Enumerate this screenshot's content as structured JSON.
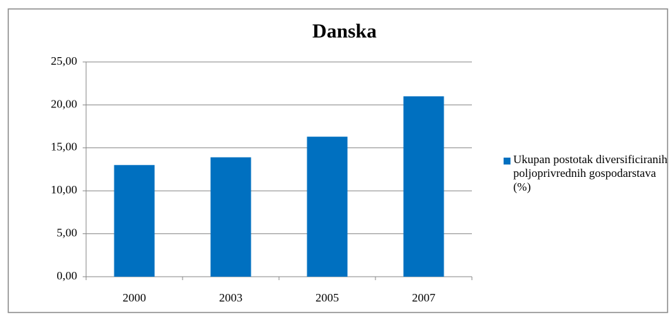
{
  "chart_data": {
    "type": "bar",
    "title": "Danska",
    "categories": [
      "2000",
      "2003",
      "2005",
      "2007"
    ],
    "series": [
      {
        "name": "Ukupan postotak diversificiranih poljoprivrednih gospodarstava (%)",
        "color": "#0070c0",
        "values": [
          13.0,
          13.9,
          16.3,
          21.0
        ]
      }
    ],
    "ylim": [
      0,
      25
    ],
    "yticks": [
      {
        "value": 0,
        "label": "0,00"
      },
      {
        "value": 5,
        "label": "5,00"
      },
      {
        "value": 10,
        "label": "10,00"
      },
      {
        "value": 15,
        "label": "15,00"
      },
      {
        "value": 20,
        "label": "20,00"
      },
      {
        "value": 25,
        "label": "25,00"
      }
    ],
    "grid": true,
    "legend": "right"
  }
}
